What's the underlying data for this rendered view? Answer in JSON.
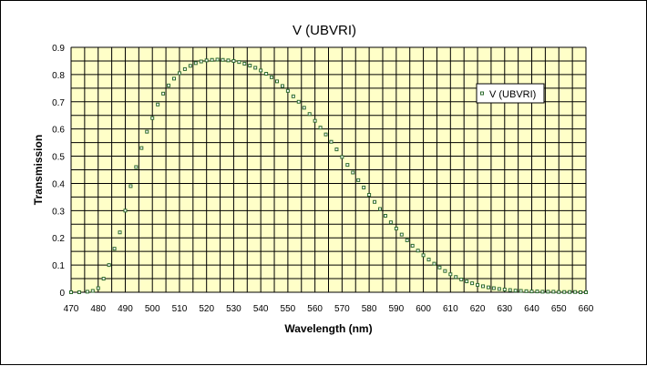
{
  "chart_data": {
    "type": "scatter",
    "title": "V (UBVRI)",
    "xlabel": "Wavelength (nm)",
    "ylabel": "Transmission",
    "xlim": [
      470,
      660
    ],
    "ylim": [
      0,
      0.9
    ],
    "x_ticks": [
      "470",
      "480",
      "490",
      "500",
      "510",
      "520",
      "530",
      "540",
      "550",
      "560",
      "570",
      "580",
      "590",
      "600",
      "610",
      "620",
      "630",
      "640",
      "650",
      "660"
    ],
    "y_ticks": [
      "0",
      "0.1",
      "0.2",
      "0.3",
      "0.4",
      "0.5",
      "0.6",
      "0.7",
      "0.8",
      "0.9"
    ],
    "grid": true,
    "legend_position": "top-right",
    "plot_background": "#ffffc8",
    "marker_color": "#2e6b2e",
    "series": [
      {
        "name": "V (UBVRI)",
        "x": [
          470,
          473,
          476,
          478,
          480,
          482,
          484,
          486,
          488,
          490,
          492,
          494,
          496,
          498,
          500,
          502,
          504,
          506,
          508,
          510,
          512,
          514,
          516,
          518,
          520,
          522,
          524,
          526,
          528,
          530,
          532,
          534,
          536,
          538,
          540,
          542,
          544,
          546,
          548,
          550,
          552,
          554,
          556,
          558,
          560,
          562,
          564,
          566,
          568,
          570,
          572,
          574,
          576,
          578,
          580,
          582,
          584,
          586,
          588,
          590,
          592,
          594,
          596,
          598,
          600,
          602,
          604,
          606,
          608,
          610,
          612,
          614,
          616,
          618,
          620,
          622,
          624,
          626,
          628,
          630,
          632,
          634,
          636,
          638,
          640,
          642,
          644,
          646,
          648,
          650,
          652,
          654,
          656,
          658,
          660
        ],
        "y": [
          0.0,
          0.0,
          0.002,
          0.005,
          0.015,
          0.05,
          0.1,
          0.16,
          0.22,
          0.3,
          0.39,
          0.46,
          0.53,
          0.59,
          0.64,
          0.69,
          0.73,
          0.76,
          0.785,
          0.805,
          0.82,
          0.832,
          0.842,
          0.848,
          0.852,
          0.854,
          0.855,
          0.854,
          0.852,
          0.85,
          0.846,
          0.84,
          0.833,
          0.825,
          0.815,
          0.803,
          0.79,
          0.775,
          0.758,
          0.74,
          0.72,
          0.7,
          0.678,
          0.655,
          0.63,
          0.605,
          0.58,
          0.553,
          0.525,
          0.497,
          0.468,
          0.44,
          0.412,
          0.385,
          0.358,
          0.332,
          0.306,
          0.281,
          0.257,
          0.234,
          0.212,
          0.191,
          0.171,
          0.153,
          0.136,
          0.12,
          0.105,
          0.091,
          0.078,
          0.066,
          0.056,
          0.047,
          0.04,
          0.033,
          0.027,
          0.022,
          0.018,
          0.015,
          0.012,
          0.01,
          0.008,
          0.006,
          0.005,
          0.004,
          0.003,
          0.003,
          0.002,
          0.002,
          0.002,
          0.001,
          0.001,
          0.001,
          0.001,
          0.0,
          0.0
        ]
      }
    ]
  }
}
